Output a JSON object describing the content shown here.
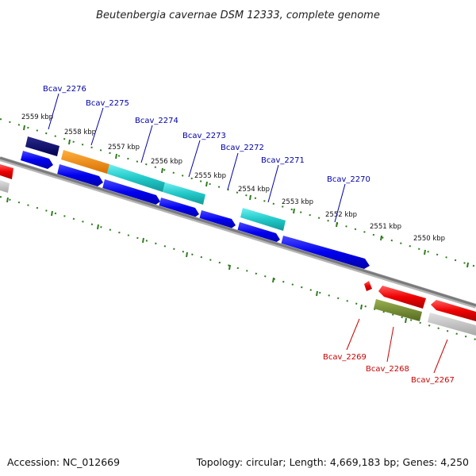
{
  "title": "Beutenbergia cavernae DSM 12333, complete genome",
  "footer": {
    "accession": "Accession: NC_012669",
    "summary": "Topology: circular; Length: 4,669,183 bp; Genes: 4,250"
  },
  "colors": {
    "forward_label": "#0000aa",
    "reverse_label": "#cc0000",
    "tick": "#2e7d1e",
    "backbone": "#7a7a7a"
  },
  "kbp_ticks": [
    "2559 kbp",
    "2558 kbp",
    "2557 kbp",
    "2556 kbp",
    "2555 kbp",
    "2554 kbp",
    "2553 kbp",
    "2552 kbp",
    "2551 kbp",
    "2550 kbp"
  ],
  "forward_labels": [
    "Bcav_2276",
    "Bcav_2275",
    "Bcav_2274",
    "Bcav_2273",
    "Bcav_2272",
    "Bcav_2271",
    "Bcav_2270"
  ],
  "reverse_labels": [
    "Bcav_2269",
    "Bcav_2268",
    "Bcav_2267"
  ]
}
